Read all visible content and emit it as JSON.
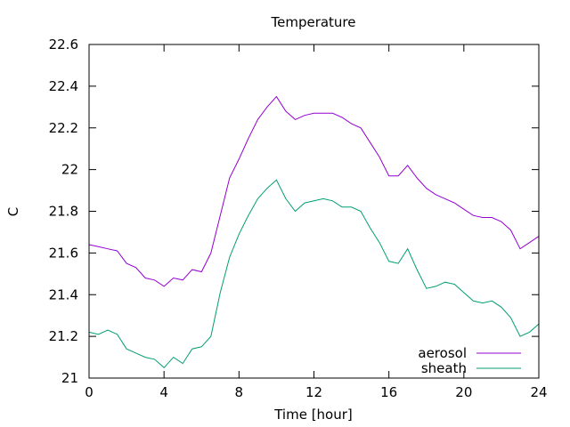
{
  "chart_data": {
    "type": "line",
    "title": "Temperature",
    "xlabel": "Time [hour]",
    "ylabel": "C",
    "xlim": [
      0,
      24
    ],
    "ylim": [
      21,
      22.6
    ],
    "xticks": [
      0,
      4,
      8,
      12,
      16,
      20,
      24
    ],
    "yticks": [
      21,
      21.2,
      21.4,
      21.6,
      21.8,
      22,
      22.2,
      22.4,
      22.6
    ],
    "legend_position": "bottom-right",
    "grid": false,
    "series": [
      {
        "name": "aerosol",
        "color": "#9400d3",
        "x": [
          0,
          0.5,
          1,
          1.5,
          2,
          2.5,
          3,
          3.5,
          4,
          4.5,
          5,
          5.5,
          6,
          6.5,
          7,
          7.5,
          8,
          8.5,
          9,
          9.5,
          10,
          10.5,
          11,
          11.5,
          12,
          12.5,
          13,
          13.5,
          14,
          14.5,
          15,
          15.5,
          16,
          16.5,
          17,
          17.5,
          18,
          18.5,
          19,
          19.5,
          20,
          20.5,
          21,
          21.5,
          22,
          22.5,
          23,
          23.5,
          24
        ],
        "y": [
          21.64,
          21.63,
          21.62,
          21.61,
          21.55,
          21.53,
          21.48,
          21.47,
          21.44,
          21.48,
          21.47,
          21.52,
          21.51,
          21.6,
          21.78,
          21.96,
          22.05,
          22.15,
          22.24,
          22.3,
          22.35,
          22.28,
          22.24,
          22.26,
          22.27,
          22.27,
          22.27,
          22.25,
          22.22,
          22.2,
          22.13,
          22.06,
          21.97,
          21.97,
          22.02,
          21.96,
          21.91,
          21.88,
          21.86,
          21.84,
          21.81,
          21.78,
          21.77,
          21.77,
          21.75,
          21.71,
          21.62,
          21.65,
          21.68
        ]
      },
      {
        "name": "sheath",
        "color": "#009e73",
        "x": [
          0,
          0.5,
          1,
          1.5,
          2,
          2.5,
          3,
          3.5,
          4,
          4.5,
          5,
          5.5,
          6,
          6.5,
          7,
          7.5,
          8,
          8.5,
          9,
          9.5,
          10,
          10.5,
          11,
          11.5,
          12,
          12.5,
          13,
          13.5,
          14,
          14.5,
          15,
          15.5,
          16,
          16.5,
          17,
          17.5,
          18,
          18.5,
          19,
          19.5,
          20,
          20.5,
          21,
          21.5,
          22,
          22.5,
          23,
          23.5,
          24
        ],
        "y": [
          21.22,
          21.21,
          21.23,
          21.21,
          21.14,
          21.12,
          21.1,
          21.09,
          21.05,
          21.1,
          21.07,
          21.14,
          21.15,
          21.2,
          21.41,
          21.58,
          21.69,
          21.78,
          21.86,
          21.91,
          21.95,
          21.86,
          21.8,
          21.84,
          21.85,
          21.86,
          21.85,
          21.82,
          21.82,
          21.8,
          21.72,
          21.65,
          21.56,
          21.55,
          21.62,
          21.52,
          21.43,
          21.44,
          21.46,
          21.45,
          21.41,
          21.37,
          21.36,
          21.37,
          21.34,
          21.29,
          21.2,
          21.22,
          21.26
        ]
      }
    ]
  }
}
